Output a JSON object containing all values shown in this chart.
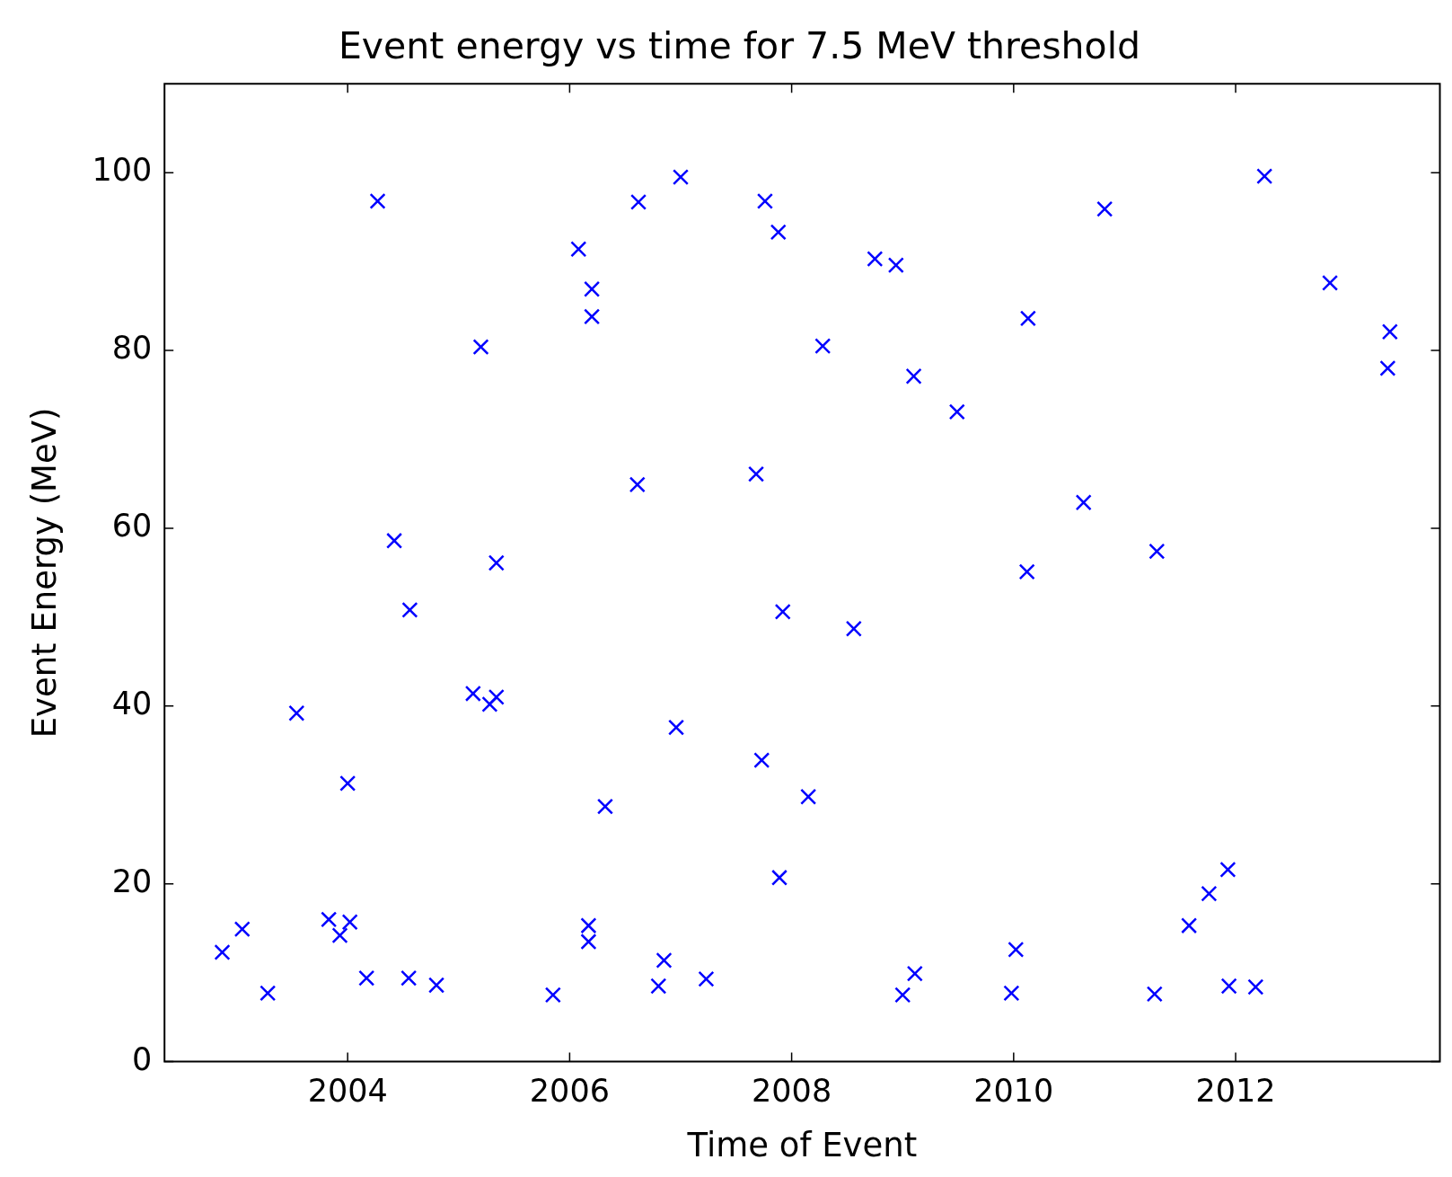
{
  "chart_data": {
    "type": "scatter",
    "title": "Event energy vs time for 7.5 MeV threshold",
    "xlabel": "Time of Event",
    "ylabel": "Event Energy (MeV)",
    "x": [
      2002.87,
      2003.05,
      2003.28,
      2003.54,
      2003.83,
      2003.93,
      2004.02,
      2004.0,
      2004.17,
      2004.27,
      2004.42,
      2004.56,
      2004.55,
      2004.8,
      2005.13,
      2005.2,
      2005.28,
      2005.34,
      2005.34,
      2005.85,
      2006.08,
      2006.17,
      2006.17,
      2006.2,
      2006.2,
      2006.32,
      2006.61,
      2006.62,
      2006.8,
      2006.85,
      2006.96,
      2007.0,
      2007.23,
      2007.68,
      2007.73,
      2007.76,
      2007.88,
      2007.89,
      2007.92,
      2008.15,
      2008.28,
      2008.56,
      2008.75,
      2008.94,
      2009.0,
      2009.1,
      2009.11,
      2009.49,
      2009.98,
      2010.02,
      2010.12,
      2010.13,
      2010.63,
      2010.82,
      2011.27,
      2011.29,
      2011.58,
      2011.76,
      2011.93,
      2011.94,
      2012.18,
      2012.26,
      2012.85,
      2013.37,
      2013.39
    ],
    "series": [
      {
        "color": "#0000ff",
        "values": [
          12.3,
          14.9,
          7.7,
          39.2,
          16.0,
          14.2,
          15.7,
          31.3,
          9.4,
          96.8,
          58.6,
          50.8,
          9.4,
          8.6,
          41.4,
          80.4,
          40.2,
          41.0,
          56.1,
          7.5,
          91.4,
          15.3,
          13.5,
          86.9,
          83.8,
          28.7,
          64.9,
          96.7,
          8.5,
          11.4,
          37.6,
          99.5,
          9.3,
          66.1,
          33.9,
          96.8,
          93.3,
          20.7,
          50.6,
          29.8,
          80.5,
          48.7,
          90.3,
          89.6,
          7.5,
          77.1,
          9.9,
          73.1,
          7.7,
          12.6,
          55.1,
          83.6,
          62.9,
          95.9,
          7.6,
          57.4,
          15.3,
          18.9,
          21.6,
          8.5,
          8.4,
          99.6,
          87.6,
          78.0,
          82.1
        ]
      }
    ],
    "xlim": [
      2002.35,
      2013.84
    ],
    "xticks": [
      2004,
      2006,
      2008,
      2010,
      2012
    ],
    "ylim": [
      0,
      110
    ],
    "yticks": [
      0,
      20,
      40,
      60,
      80,
      100
    ],
    "grid": false,
    "legend": false,
    "marker": "cross"
  }
}
